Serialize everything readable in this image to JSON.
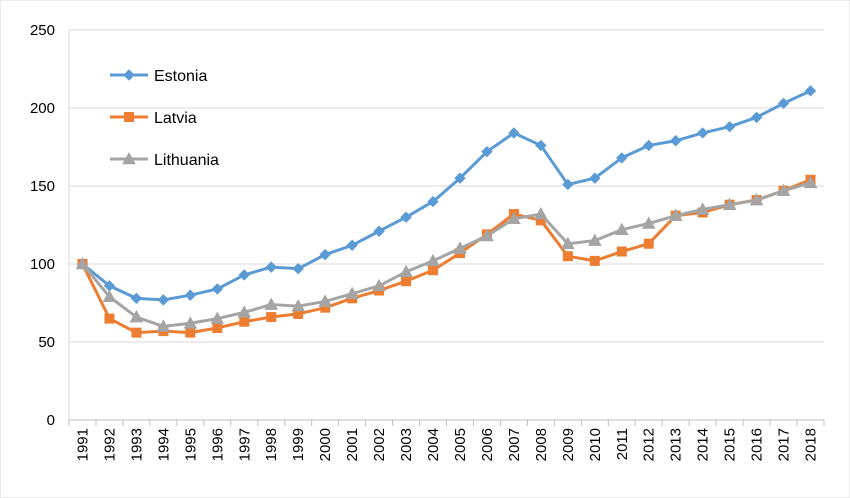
{
  "chart_data": {
    "type": "line",
    "title": "",
    "xlabel": "",
    "ylabel": "",
    "ylim": [
      0,
      250
    ],
    "yticks": [
      0,
      50,
      100,
      150,
      200,
      250
    ],
    "grid": "horizontal",
    "legend_position": "top-left",
    "categories": [
      "1991",
      "1992",
      "1993",
      "1994",
      "1995",
      "1996",
      "1997",
      "1998",
      "1999",
      "2000",
      "2001",
      "2002",
      "2003",
      "2004",
      "2005",
      "2006",
      "2007",
      "2008",
      "2009",
      "2010",
      "2011",
      "2012",
      "2013",
      "2014",
      "2015",
      "2016",
      "2017",
      "2018"
    ],
    "series": [
      {
        "name": "Estonia",
        "color": "#5B9BD5",
        "marker": "diamond",
        "values": [
          100,
          86,
          78,
          77,
          80,
          84,
          93,
          98,
          97,
          106,
          112,
          121,
          130,
          140,
          155,
          172,
          184,
          176,
          151,
          155,
          168,
          176,
          179,
          184,
          188,
          194,
          203,
          211
        ]
      },
      {
        "name": "Latvia",
        "color": "#ED7D31",
        "marker": "square",
        "values": [
          100,
          65,
          56,
          57,
          56,
          59,
          63,
          66,
          68,
          72,
          78,
          83,
          89,
          96,
          107,
          119,
          132,
          128,
          105,
          102,
          108,
          113,
          131,
          133,
          138,
          141,
          147,
          154
        ]
      },
      {
        "name": "Lithuania",
        "color": "#A5A5A5",
        "marker": "triangle",
        "values": [
          100,
          79,
          66,
          60,
          62,
          65,
          69,
          74,
          73,
          76,
          81,
          86,
          95,
          102,
          110,
          118,
          129,
          132,
          113,
          115,
          122,
          126,
          131,
          135,
          138,
          141,
          147,
          152
        ]
      }
    ]
  }
}
